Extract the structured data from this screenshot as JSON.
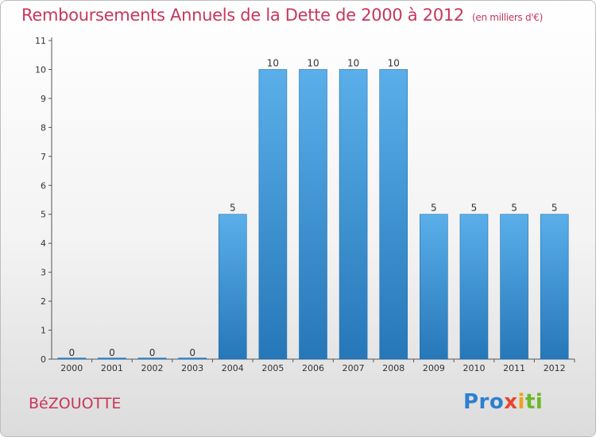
{
  "header": {
    "title": "Remboursements Annuels de la Dette de 2000 à 2012",
    "subtitle": "(en milliers d'€)"
  },
  "footer": {
    "place": "BéZOUOTTE",
    "logo": [
      "Pro",
      "x",
      "i",
      "ti"
    ]
  },
  "colors": {
    "title": "#c8365d",
    "bar_top": "#5aafea",
    "bar_bottom": "#2677b8",
    "axis": "#555555"
  },
  "chart_data": {
    "type": "bar",
    "title": "Remboursements Annuels de la Dette de 2000 à 2012",
    "subtitle": "(en milliers d'€)",
    "categories": [
      "2000",
      "2001",
      "2002",
      "2003",
      "2004",
      "2005",
      "2006",
      "2007",
      "2008",
      "2009",
      "2010",
      "2011",
      "2012"
    ],
    "values": [
      0,
      0,
      0,
      0,
      5,
      10,
      10,
      10,
      10,
      5,
      5,
      5,
      5
    ],
    "value_labels": [
      "0",
      "0",
      "0",
      "0",
      "5",
      "10",
      "10",
      "10",
      "10",
      "5",
      "5",
      "5",
      "5"
    ],
    "ylim": [
      0,
      11
    ],
    "yticks": [
      "0",
      "1",
      "2",
      "3",
      "4",
      "5",
      "6",
      "7",
      "8",
      "9",
      "10",
      "11"
    ],
    "xlabel": "",
    "ylabel": "",
    "grid": false,
    "legend": "none"
  }
}
